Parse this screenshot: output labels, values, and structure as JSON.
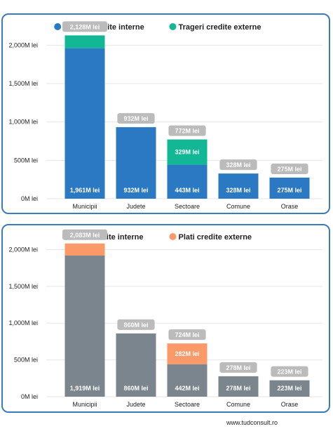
{
  "chart_data": [
    {
      "type": "bar",
      "stacked": true,
      "categories": [
        "Municipii",
        "Judete",
        "Sectoare",
        "Comune",
        "Orase"
      ],
      "series": [
        {
          "name": "Trageri credite interne",
          "color": "#2a79c2",
          "values": [
            1961,
            932,
            443,
            328,
            275
          ],
          "labels": [
            "1,961M lei",
            "932M lei",
            "443M lei",
            "328M lei",
            "275M lei"
          ]
        },
        {
          "name": "Trageri credite externe",
          "color": "#12b896",
          "values": [
            167,
            0,
            329,
            0,
            0
          ],
          "labels": [
            "",
            "",
            "329M lei",
            "",
            ""
          ]
        }
      ],
      "totals": [
        2128,
        932,
        772,
        328,
        275
      ],
      "total_labels": [
        "2,128M lei",
        "932M lei",
        "772M lei",
        "328M lei",
        "275M lei"
      ],
      "yticks": [
        0,
        500,
        1000,
        1500,
        2000
      ],
      "ytick_labels": [
        "0M lei",
        "500M lei",
        "1,000M lei",
        "1,500M lei",
        "2,000M lei"
      ],
      "ylim": [
        0,
        2150
      ],
      "grid": true,
      "legend": "top-center"
    },
    {
      "type": "bar",
      "stacked": true,
      "categories": [
        "Municipii",
        "Judete",
        "Sectoare",
        "Comune",
        "Orase"
      ],
      "series": [
        {
          "name": "Plati credite interne",
          "color": "#7b858d",
          "values": [
            1919,
            860,
            442,
            278,
            223
          ],
          "labels": [
            "1,919M lei",
            "860M lei",
            "442M lei",
            "278M lei",
            "223M lei"
          ]
        },
        {
          "name": "Plati credite externe",
          "color": "#fb9969",
          "values": [
            164,
            0,
            282,
            0,
            0
          ],
          "labels": [
            "",
            "",
            "282M lei",
            "",
            ""
          ]
        }
      ],
      "totals": [
        2083,
        860,
        724,
        278,
        223
      ],
      "total_labels": [
        "2,083M lei",
        "860M lei",
        "724M lei",
        "278M lei",
        "223M lei"
      ],
      "yticks": [
        0,
        500,
        1000,
        1500,
        2000
      ],
      "ytick_labels": [
        "0M lei",
        "500M lei",
        "1,000M lei",
        "1,500M lei",
        "2,000M lei"
      ],
      "ylim": [
        0,
        2100
      ],
      "grid": true,
      "legend": "top-center"
    }
  ],
  "colors": {
    "panel_border": "#3a7bbf",
    "total_label_bg": "#bbbbbb",
    "grid": "#e6e6e6"
  },
  "footer": {
    "watermark": "www.tudconsult.ro"
  }
}
